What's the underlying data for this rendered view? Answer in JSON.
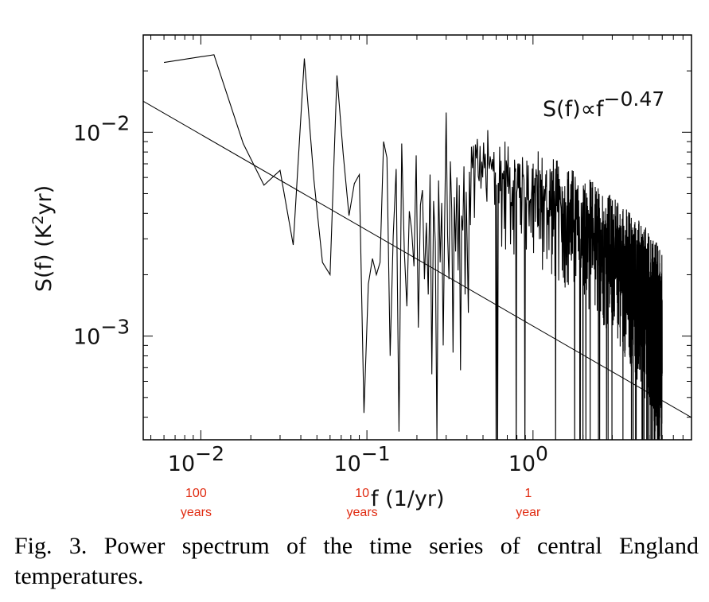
{
  "chart_data": {
    "type": "line",
    "x_scale": "log",
    "y_scale": "log",
    "xlim": [
      0.0045,
      9.0
    ],
    "ylim": [
      0.00031,
      0.03
    ],
    "xlabel": "f (1/yr)",
    "ylabel_prefix": "S(f) (K",
    "ylabel_sup": "2",
    "ylabel_suffix": "yr)",
    "annotation_text": "S(f)∝f",
    "annotation_exponent": "−0.47",
    "x_ticks": [
      {
        "value": 0.01,
        "base": "10",
        "exp": "−2"
      },
      {
        "value": 0.1,
        "base": "10",
        "exp": "−1"
      },
      {
        "value": 1.0,
        "base": "10",
        "exp": "0"
      }
    ],
    "y_ticks": [
      {
        "value": 0.01,
        "base": "10",
        "exp": "−2"
      },
      {
        "value": 0.001,
        "base": "10",
        "exp": "−3"
      }
    ],
    "period_labels": [
      {
        "value": 0.01,
        "lines": [
          "100",
          "years"
        ]
      },
      {
        "value": 0.1,
        "lines": [
          "10",
          "years"
        ]
      },
      {
        "value": 1.0,
        "lines": [
          "1",
          "year"
        ]
      }
    ],
    "fit": {
      "amplitude": 0.00112,
      "exponent": -0.47
    },
    "series": [
      {
        "x": [
          0.006,
          0.012,
          0.018,
          0.024,
          0.03,
          0.036,
          0.042,
          0.048,
          0.054,
          0.06,
          0.066,
          0.072,
          0.078,
          0.084,
          0.09,
          0.096,
          0.102,
          0.108,
          0.114,
          0.12,
          0.126,
          0.132,
          0.138,
          0.144,
          0.15,
          0.156,
          0.162,
          0.168,
          0.174,
          0.18,
          0.186,
          0.192,
          0.198,
          0.204,
          0.21,
          0.216,
          0.222,
          0.228,
          0.234,
          0.24,
          0.246,
          0.252,
          0.258,
          0.264,
          0.27,
          0.276,
          0.282,
          0.288,
          0.294,
          0.3,
          0.306,
          0.312,
          0.318,
          0.324,
          0.33,
          0.336,
          0.342,
          0.348,
          0.354,
          0.36,
          0.366,
          0.372,
          0.378,
          0.384,
          0.39,
          0.396,
          0.402,
          0.408,
          0.414,
          0.42
        ],
        "y": [
          0.022,
          0.024,
          0.0088,
          0.0055,
          0.0065,
          0.0028,
          0.023,
          0.0058,
          0.0023,
          0.002,
          0.019,
          0.0078,
          0.0039,
          0.0056,
          0.0062,
          0.00042,
          0.0018,
          0.0024,
          0.002,
          0.0023,
          0.009,
          0.0075,
          0.0008,
          0.0031,
          0.0066,
          0.00034,
          0.0088,
          0.0026,
          0.0014,
          0.0041,
          0.0033,
          0.0022,
          0.0077,
          0.0011,
          0.0044,
          0.0052,
          0.0019,
          0.0036,
          0.0016,
          0.0062,
          0.00065,
          0.0046,
          0.0029,
          0.00031,
          0.0058,
          0.0023,
          0.0045,
          0.0009,
          0.0038,
          0.0125,
          0.0031,
          0.0019,
          0.0072,
          0.0042,
          0.00083,
          0.0048,
          0.0026,
          0.006,
          0.0021,
          0.0055,
          0.00068,
          0.0039,
          0.0033,
          0.0068,
          0.0016,
          0.0051,
          0.0027,
          0.0013,
          0.0064,
          0.0035
        ],
        "dense_tail": {
          "x_start": 0.426,
          "x_end": 6.0,
          "step": 0.006,
          "low": [
            0.00031,
            0.0045
          ],
          "high": [
            0.0018,
            0.0075
          ]
        }
      }
    ]
  },
  "caption": "Fig. 3. Power spectrum of the time series of central England temperatures."
}
